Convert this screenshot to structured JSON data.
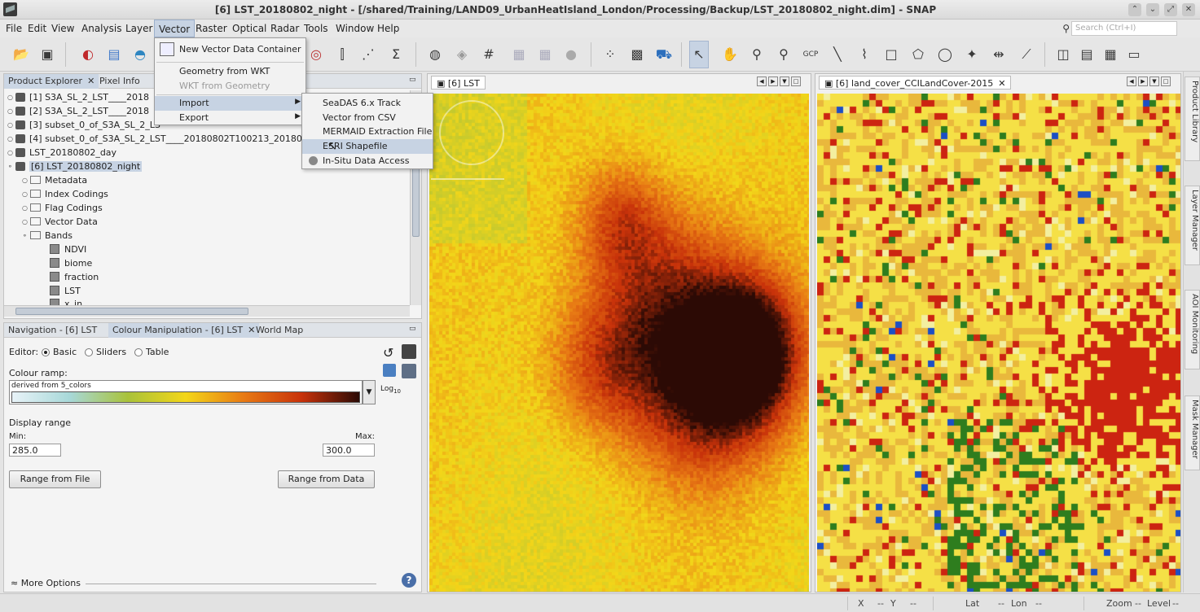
{
  "window": {
    "title": "[6] LST_20180802_night - [/shared/Training/LAND09_UrbanHeatIsland_London/Processing/Backup/LST_20180802_night.dim] - SNAP",
    "controls": [
      "⌃",
      "⌄",
      "⤢",
      "✕"
    ]
  },
  "menubar": {
    "items": [
      "File",
      "Edit",
      "View",
      "Analysis",
      "Layer",
      "Vector",
      "Raster",
      "Optical",
      "Radar",
      "Tools",
      "Window",
      "Help"
    ],
    "active": "Vector",
    "search_placeholder": "Search (Ctrl+I)"
  },
  "vector_menu": {
    "items": [
      {
        "label": "New Vector Data Container",
        "enabled": true
      },
      {
        "label": "Geometry from WKT",
        "enabled": true
      },
      {
        "label": "WKT from Geometry",
        "enabled": false
      },
      {
        "label": "Import",
        "enabled": true,
        "submenu": true
      },
      {
        "label": "Export",
        "enabled": true,
        "submenu": true
      }
    ]
  },
  "import_submenu": {
    "items": [
      "SeaDAS 6.x Track",
      "Vector from CSV",
      "MERMAID Extraction File",
      "ESRI Shapefile",
      "In-Situ Data Access"
    ],
    "hovered": "ESRI Shapefile"
  },
  "product_explorer": {
    "tabs": [
      "Product Explorer",
      "Pixel Info"
    ],
    "products": [
      "[1] S3A_SL_2_LST____2018",
      "[2] S3A_SL_2_LST____2018",
      "[3] subset_0_of_S3A_SL_2_LS",
      "[4] subset_0_of_S3A_SL_2_LST____20180802T100213_201808",
      "LST_20180802_day",
      "[6] LST_20180802_night"
    ],
    "folders": [
      "Metadata",
      "Index Codings",
      "Flag Codings",
      "Vector Data",
      "Bands"
    ],
    "bands": [
      "NDVI",
      "biome",
      "fraction",
      "LST",
      "x_in"
    ]
  },
  "colour_panel": {
    "tabs": [
      "Navigation - [6] LST",
      "Colour Manipulation - [6] LST",
      "World Map"
    ],
    "editor_label": "Editor:",
    "editor_options": [
      "Basic",
      "Sliders",
      "Table"
    ],
    "selected_editor": "Basic",
    "ramp_label": "Colour ramp:",
    "ramp_name": "derived from 5_colors",
    "log_label": "Log",
    "log_sub": "10",
    "display_range_label": "Display range",
    "min_label": "Min:",
    "max_label": "Max:",
    "min_value": "285.0",
    "max_value": "300.0",
    "range_file_button": "Range from File",
    "range_data_button": "Range from Data",
    "more_options": "More Options"
  },
  "views": {
    "left_tab": "[6] LST",
    "right_tab": "[6] land_cover_CCILandCover-2015"
  },
  "side_tabs": [
    "Product Library",
    "Layer Manager",
    "AOI Monitoring",
    "Mask Manager"
  ],
  "status": {
    "x_label": "X",
    "x_value": "--",
    "y_label": "Y",
    "y_value": "--",
    "lat_label": "Lat",
    "lat_value": "--",
    "lon_label": "Lon",
    "lon_value": "--",
    "zoom_label": "Zoom",
    "zoom_value": "--",
    "level_label": "Level",
    "level_value": "--"
  },
  "colors": {
    "accent": "#c7d3e3",
    "lst_ramp": [
      "#e8f3f8",
      "#a7d8d8",
      "#a9c23a",
      "#f3d619",
      "#e87a14",
      "#c8320a",
      "#2b0a05"
    ],
    "landcover": [
      "#f5e046",
      "#e9b83c",
      "#cc2411",
      "#2e7d1e",
      "#1c4fc4",
      "#f3efa0"
    ]
  }
}
